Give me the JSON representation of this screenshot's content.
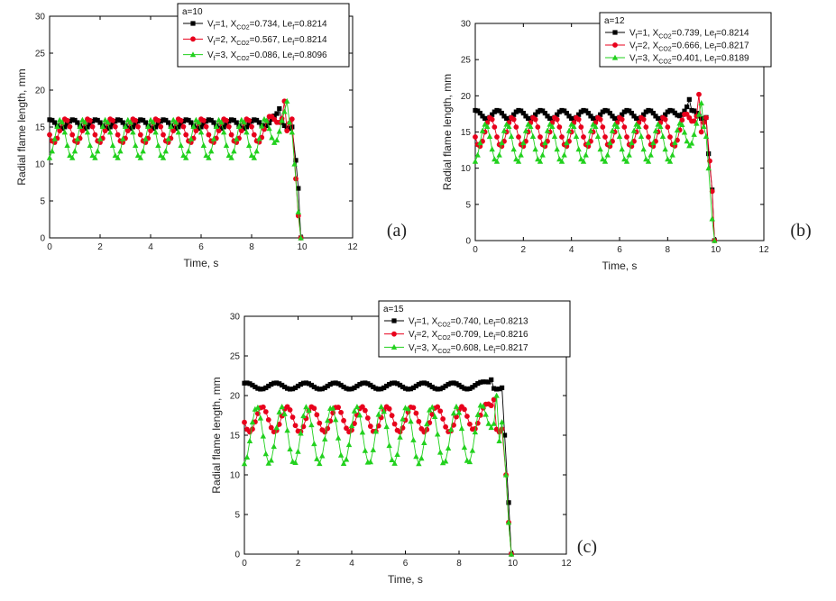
{
  "chart_data": [
    {
      "type": "line",
      "panel_label": "(a)",
      "xlabel": "Time, s",
      "ylabel": "Radial flame length, mm",
      "xlim": [
        0,
        12
      ],
      "ylim": [
        0,
        30
      ],
      "xticks": [
        "0",
        "2",
        "4",
        "6",
        "8",
        "10",
        "12"
      ],
      "yticks": [
        "0",
        "5",
        "10",
        "15",
        "20",
        "25",
        "30"
      ],
      "legend": {
        "header": "a=10",
        "entries": [
          {
            "p1": "V",
            "s1": "f",
            "p2": "=1, X",
            "s2": "CO2",
            "p3": "=0.734, Le",
            "s3": "f",
            "p4": "=0.8214"
          },
          {
            "p1": "V",
            "s1": "f",
            "p2": "=2, X",
            "s2": "CO2",
            "p3": "=0.567, Le",
            "s3": "f",
            "p4": "=0.8214"
          },
          {
            "p1": "V",
            "s1": "f",
            "p2": "=3, X",
            "s2": "CO2",
            "p3": "=0.086, Le",
            "s3": "f",
            "p4": "=0.8096"
          }
        ]
      },
      "series": [
        {
          "color": "#000000",
          "marker": "square",
          "base": 15.4,
          "amp": 0.6,
          "period": 0.9,
          "offset": 0.2,
          "peak": [
            9.1,
            17.5
          ],
          "trail": [
            [
              9.75,
              10.5
            ],
            [
              9.85,
              6.7
            ],
            [
              9.95,
              0
            ]
          ]
        },
        {
          "color": "#e8001c",
          "marker": "circle",
          "base": 14.5,
          "amp": 1.6,
          "period": 0.9,
          "offset": 0.5,
          "peak": [
            9.3,
            18.5
          ],
          "trail": [
            [
              9.75,
              8.0
            ],
            [
              9.85,
              3.0
            ],
            [
              9.95,
              0
            ]
          ]
        },
        {
          "color": "#22d11e",
          "marker": "triangle",
          "base": 13.4,
          "amp": 2.6,
          "period": 0.9,
          "offset": 0.7,
          "peak": [
            9.4,
            18.5
          ],
          "trail": [
            [
              9.7,
              10.0
            ],
            [
              9.85,
              3.5
            ],
            [
              9.95,
              0
            ]
          ]
        }
      ]
    },
    {
      "type": "line",
      "panel_label": "(b)",
      "xlabel": "Time, s",
      "ylabel": "Radial flame length, mm",
      "xlim": [
        0,
        12
      ],
      "ylim": [
        0,
        30
      ],
      "xticks": [
        "0",
        "2",
        "4",
        "6",
        "8",
        "10",
        "12"
      ],
      "yticks": [
        "0",
        "5",
        "10",
        "15",
        "20",
        "25",
        "30"
      ],
      "legend": {
        "header": "a=12",
        "entries": [
          {
            "p1": "V",
            "s1": "f",
            "p2": "=1, X",
            "s2": "CO2",
            "p3": "=0.739, Le",
            "s3": "f",
            "p4": "=0.8214"
          },
          {
            "p1": "V",
            "s1": "f",
            "p2": "=2, X",
            "s2": "CO2",
            "p3": "=0.666, Le",
            "s3": "f",
            "p4": "=0.8217"
          },
          {
            "p1": "V",
            "s1": "f",
            "p2": "=3, X",
            "s2": "CO2",
            "p3": "=0.401, Le",
            "s3": "f",
            "p4": "=0.8189"
          }
        ]
      },
      "series": [
        {
          "color": "#000000",
          "marker": "square",
          "base": 17.4,
          "amp": 0.6,
          "period": 0.9,
          "offset": 0.2,
          "peak": [
            8.9,
            19.5
          ],
          "trail": [
            [
              9.7,
              12.0
            ],
            [
              9.85,
              7.0
            ],
            [
              9.95,
              0
            ]
          ]
        },
        {
          "color": "#e8001c",
          "marker": "circle",
          "base": 15.0,
          "amp": 2.0,
          "period": 0.9,
          "offset": 0.5,
          "peak": [
            9.3,
            20.2
          ],
          "trail": [
            [
              9.75,
              11.0
            ],
            [
              9.85,
              6.8
            ],
            [
              9.95,
              0
            ]
          ]
        },
        {
          "color": "#22d11e",
          "marker": "triangle",
          "base": 13.5,
          "amp": 2.6,
          "period": 0.9,
          "offset": 0.7,
          "peak": [
            9.4,
            19.0
          ],
          "trail": [
            [
              9.7,
              10.0
            ],
            [
              9.85,
              3.0
            ],
            [
              9.95,
              0
            ]
          ]
        }
      ]
    },
    {
      "type": "line",
      "panel_label": "(c)",
      "xlabel": "Time, s",
      "ylabel": "Radial flame length, mm",
      "xlim": [
        0,
        12
      ],
      "ylim": [
        0,
        30
      ],
      "xticks": [
        "0",
        "2",
        "4",
        "6",
        "8",
        "10",
        "12"
      ],
      "yticks": [
        "0",
        "5",
        "10",
        "15",
        "20",
        "25",
        "30"
      ],
      "legend": {
        "header": "a=15",
        "entries": [
          {
            "p1": "V",
            "s1": "f",
            "p2": "=1, X",
            "s2": "CO2",
            "p3": "=0.740, Le",
            "s3": "f",
            "p4": "=0.8213"
          },
          {
            "p1": "V",
            "s1": "f",
            "p2": "=2, X",
            "s2": "CO2",
            "p3": "=0.709, Le",
            "s3": "f",
            "p4": "=0.8216"
          },
          {
            "p1": "V",
            "s1": "f",
            "p2": "=3, X",
            "s2": "CO2",
            "p3": "=0.608, Le",
            "s3": "f",
            "p4": "=0.8217"
          }
        ]
      },
      "series": [
        {
          "color": "#000000",
          "marker": "square",
          "base": 21.2,
          "amp": 0.4,
          "period": 1.1,
          "offset": 0.2,
          "peak": [
            9.2,
            22.0
          ],
          "trail": [
            [
              9.7,
              15.0
            ],
            [
              9.85,
              6.5
            ],
            [
              9.95,
              0
            ]
          ]
        },
        {
          "color": "#e8001c",
          "marker": "circle",
          "base": 17.0,
          "amp": 1.6,
          "period": 0.93,
          "offset": 0.5,
          "peak": [
            9.3,
            19.5
          ],
          "trail": [
            [
              9.75,
              10.0
            ],
            [
              9.85,
              4.0
            ],
            [
              9.95,
              0
            ]
          ]
        },
        {
          "color": "#22d11e",
          "marker": "triangle",
          "base": 15.0,
          "amp": 3.6,
          "period": 0.93,
          "offset": 0.7,
          "peak": [
            9.4,
            20.0
          ],
          "trail": [
            [
              9.75,
              10.0
            ],
            [
              9.85,
              4.0
            ],
            [
              9.95,
              0
            ]
          ]
        }
      ]
    }
  ]
}
